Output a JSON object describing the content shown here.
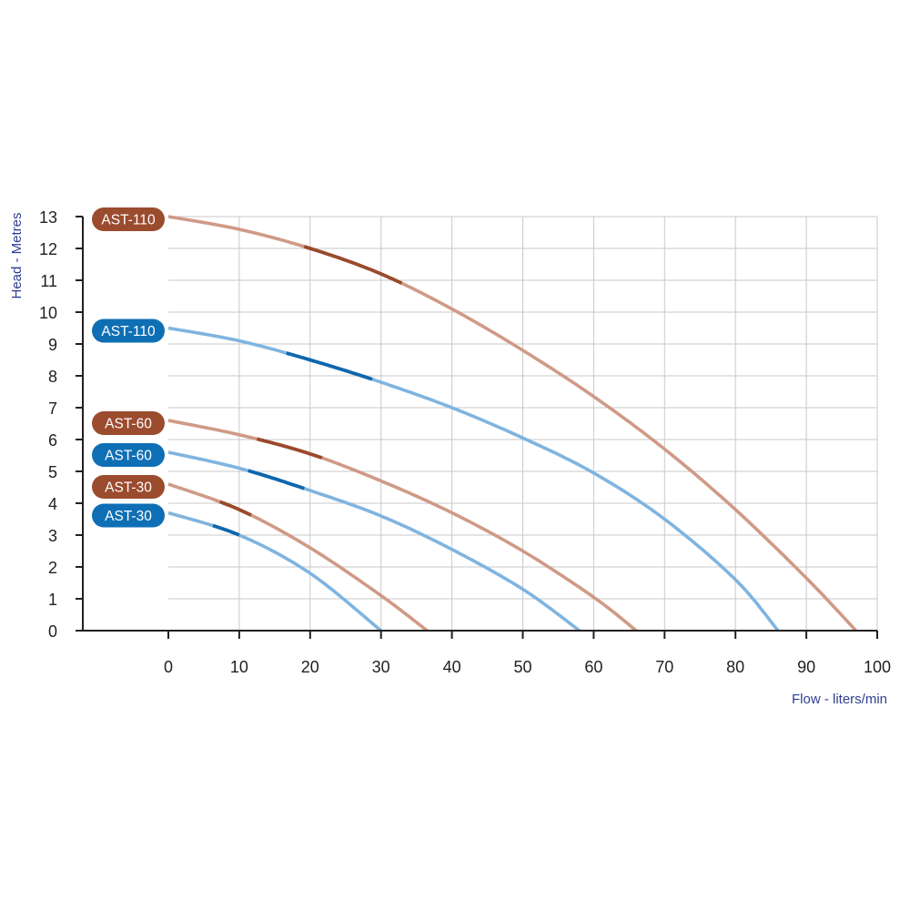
{
  "chart_data": {
    "type": "line",
    "xlabel": "Flow - liters/min",
    "ylabel": "Head - Metres",
    "xlim": [
      0,
      100
    ],
    "ylim": [
      0,
      13
    ],
    "x_ticks": [
      0,
      10,
      20,
      30,
      40,
      50,
      60,
      70,
      80,
      90,
      100
    ],
    "y_ticks": [
      0,
      1,
      2,
      3,
      4,
      5,
      6,
      7,
      8,
      9,
      10,
      11,
      12,
      13
    ],
    "grid": true,
    "colors": {
      "brown_light": "#cf9a86",
      "brown_dark": "#9a4a2c",
      "brown_badge": "#9b4b2e",
      "blue_light": "#7fb4e0",
      "blue_dark": "#0f67ad",
      "blue_badge": "#0f6fb5",
      "axis_title": "#2e3f8f"
    },
    "series": [
      {
        "name": "AST-110",
        "color": "brown",
        "x": [
          0,
          10,
          20,
          30,
          40,
          50,
          60,
          70,
          80,
          90,
          97
        ],
        "y": [
          13,
          12.6,
          12.0,
          11.2,
          10.1,
          8.8,
          7.35,
          5.7,
          3.8,
          1.65,
          0
        ],
        "best_efficiency_range": [
          19,
          33
        ]
      },
      {
        "name": "AST-110",
        "color": "blue",
        "x": [
          0,
          10,
          20,
          30,
          40,
          50,
          60,
          70,
          80,
          86
        ],
        "y": [
          9.5,
          9.1,
          8.5,
          7.8,
          7.0,
          6.05,
          4.95,
          3.5,
          1.6,
          0
        ],
        "best_efficiency_range": [
          16.5,
          29
        ]
      },
      {
        "name": "AST-60",
        "color": "brown",
        "x": [
          0,
          10,
          20,
          30,
          40,
          50,
          60,
          66
        ],
        "y": [
          6.6,
          6.15,
          5.55,
          4.7,
          3.7,
          2.5,
          1.05,
          0
        ],
        "best_efficiency_range": [
          12.5,
          22
        ]
      },
      {
        "name": "AST-60",
        "color": "blue",
        "x": [
          0,
          10,
          20,
          30,
          40,
          50,
          58
        ],
        "y": [
          5.6,
          5.1,
          4.4,
          3.6,
          2.55,
          1.3,
          0
        ],
        "best_efficiency_range": [
          11,
          19.5
        ]
      },
      {
        "name": "AST-30",
        "color": "brown",
        "x": [
          0,
          10,
          20,
          30,
          36.5
        ],
        "y": [
          4.6,
          3.8,
          2.6,
          1.1,
          0
        ],
        "best_efficiency_range": [
          7,
          12
        ]
      },
      {
        "name": "AST-30",
        "color": "blue",
        "x": [
          0,
          10,
          20,
          30
        ],
        "y": [
          3.7,
          3.0,
          1.8,
          0
        ],
        "best_efficiency_range": [
          6,
          10
        ]
      }
    ],
    "badges": [
      {
        "label": "AST-110",
        "color": "brown",
        "y": 13.0
      },
      {
        "label": "AST-110",
        "color": "blue",
        "y": 9.5
      },
      {
        "label": "AST-60",
        "color": "brown",
        "y": 6.6
      },
      {
        "label": "AST-60",
        "color": "blue",
        "y": 5.6
      },
      {
        "label": "AST-30",
        "color": "brown",
        "y": 4.6
      },
      {
        "label": "AST-30",
        "color": "blue",
        "y": 3.7
      }
    ]
  }
}
